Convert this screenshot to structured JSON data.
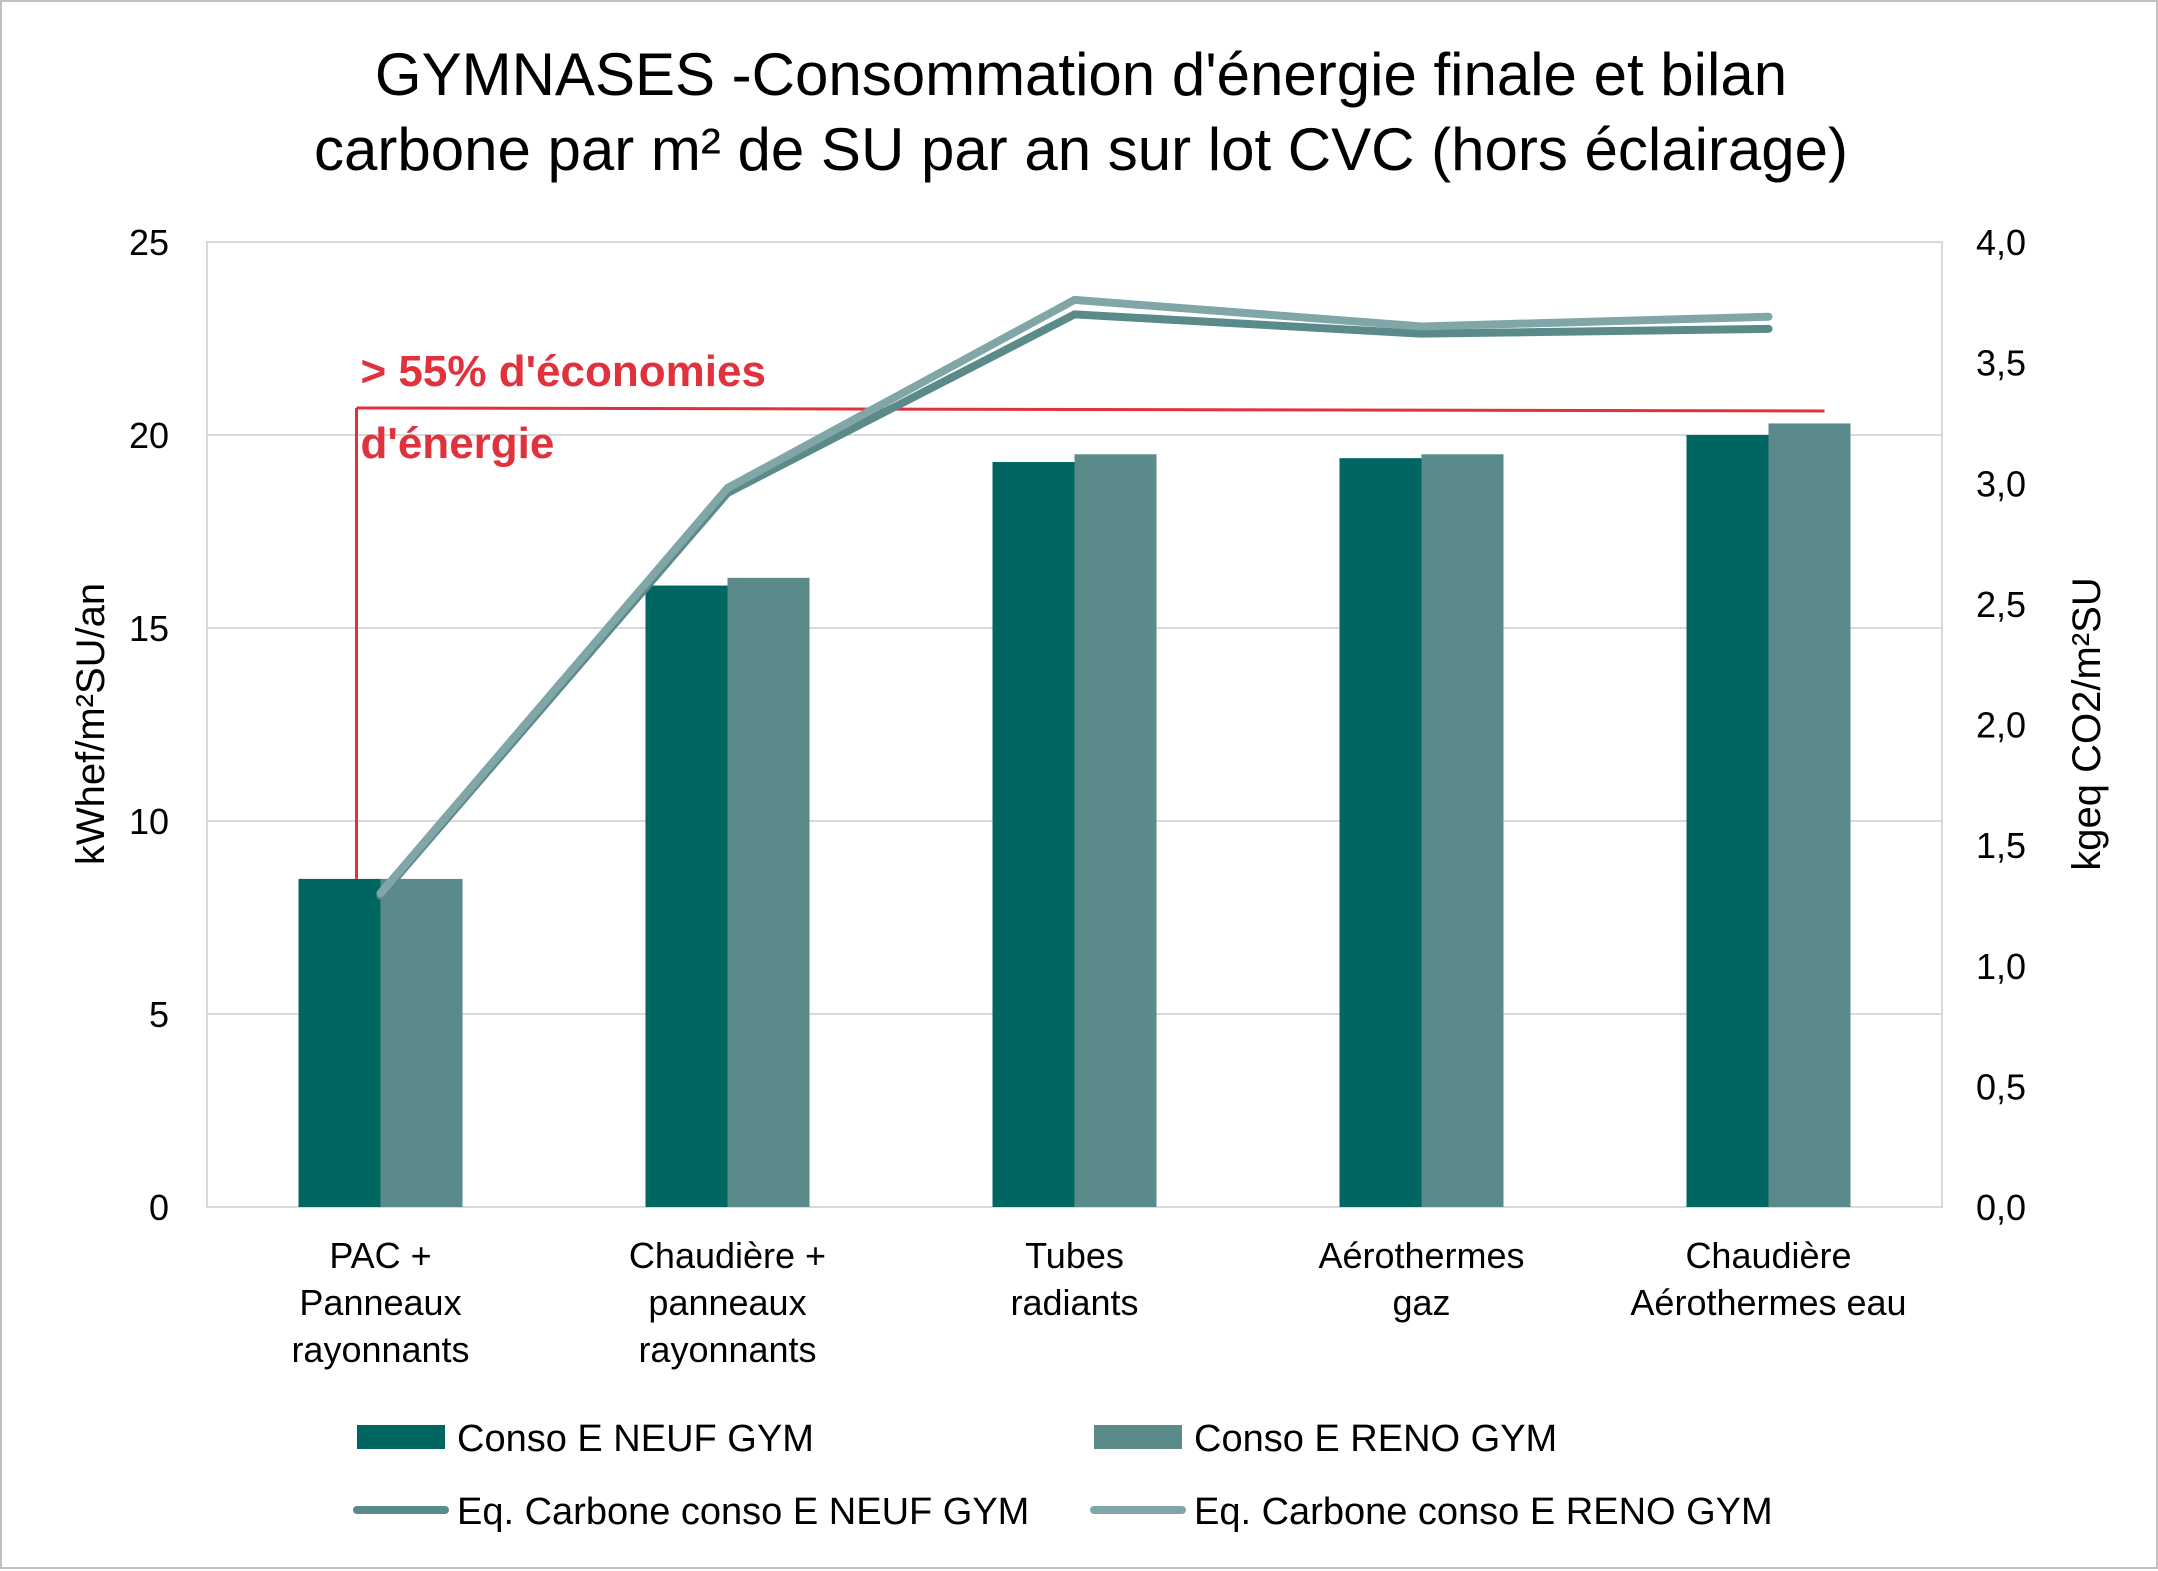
{
  "chart_data": {
    "type": "bar",
    "title_lines": [
      "GYMNASES  -Consommation d'énergie finale et bilan",
      "carbone par m² de SU par an sur lot CVC (hors éclairage)"
    ],
    "categories": [
      [
        "PAC +",
        "Panneaux",
        "rayonnants"
      ],
      [
        "Chaudière +",
        "panneaux",
        "rayonnants"
      ],
      [
        "Tubes",
        "radiants"
      ],
      [
        "Aérothermes",
        "gaz"
      ],
      [
        "Chaudière",
        "Aérothermes eau"
      ]
    ],
    "ylabel_left": "kWhef/m²SU/an",
    "ylabel_right": "kgeq CO2/m²SU",
    "ylim_left": [
      0,
      25
    ],
    "ylim_right": [
      0,
      4
    ],
    "yticks_left": [
      "0",
      "5",
      "10",
      "15",
      "20",
      "25"
    ],
    "yticks_right": [
      "0,0",
      "0,5",
      "1,0",
      "1,5",
      "2,0",
      "2,5",
      "3,0",
      "3,5",
      "4,0"
    ],
    "grid": true,
    "bar_series": [
      {
        "name": "Conso E NEUF GYM",
        "axis": "left",
        "color": "#006661",
        "values": [
          8.5,
          16.1,
          19.3,
          19.4,
          20.0
        ]
      },
      {
        "name": "Conso E RENO GYM",
        "axis": "left",
        "color": "#5b8a8b",
        "values": [
          8.5,
          16.3,
          19.5,
          19.5,
          20.3
        ]
      }
    ],
    "line_series": [
      {
        "name": "Eq. Carbone conso E NEUF GYM",
        "axis": "right",
        "color": "#5b8a8b",
        "values": [
          1.29,
          2.96,
          3.7,
          3.62,
          3.64
        ]
      },
      {
        "name": "Eq. Carbone conso E RENO GYM",
        "axis": "right",
        "color": "#80a6a8",
        "values": [
          1.3,
          2.98,
          3.76,
          3.65,
          3.69
        ]
      }
    ],
    "annotation": {
      "lines": [
        "> 55% d'économies",
        "d'énergie"
      ],
      "color": "#e0323c",
      "from_category": 0,
      "to_category": 4,
      "level": 20.7
    },
    "legend_position": "bottom"
  }
}
